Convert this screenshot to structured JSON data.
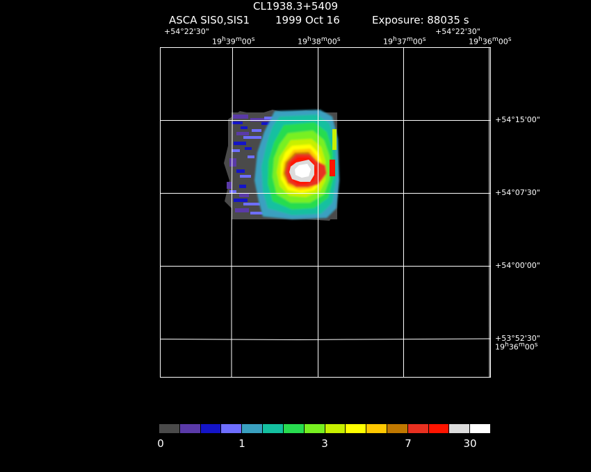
{
  "header": {
    "title": "CL1938.3+5409",
    "instrument": "ASCA SIS0,SIS1",
    "date": "1999 Oct 16",
    "exposure": "Exposure: 88035 s"
  },
  "top_axis": {
    "dec_left": "+54°22'30\"",
    "dec_right": "+54°22'30\"",
    "ra_ticks": [
      {
        "h": "19",
        "m": "39",
        "s": "00"
      },
      {
        "h": "19",
        "m": "38",
        "s": "00"
      },
      {
        "h": "19",
        "m": "37",
        "s": "00"
      },
      {
        "h": "19",
        "m": "36",
        "s": "00"
      }
    ]
  },
  "right_axis": {
    "dec_ticks": [
      "+54°15'00\"",
      "+54°07'30\"",
      "+54°00'00\"",
      "+53°52'30\""
    ],
    "ra_bottom": {
      "h": "19",
      "m": "36",
      "s": "00"
    }
  },
  "colorbar": {
    "labels": [
      "0",
      "1",
      "3",
      "7",
      "30"
    ],
    "colors": [
      "#4a4a4a",
      "#5a3aa8",
      "#1414c8",
      "#6e6eff",
      "#3aa0c0",
      "#14c0a0",
      "#28dc50",
      "#78f020",
      "#c8f000",
      "#ffff00",
      "#ffc800",
      "#c07800",
      "#e83020",
      "#ff1400",
      "#dcdcdc",
      "#ffffff"
    ]
  }
}
